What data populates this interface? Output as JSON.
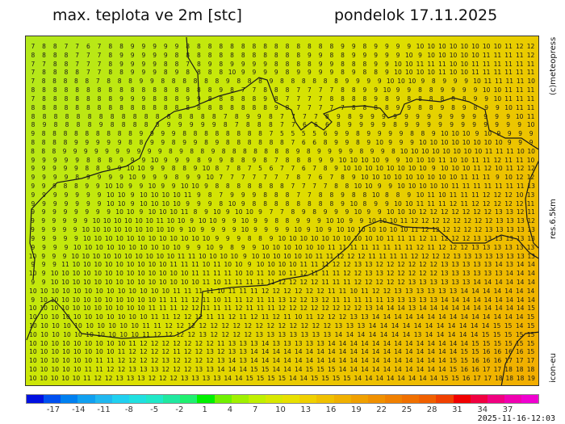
{
  "header": {
    "title": "max. teplota ve 2m [stc]",
    "date": "pondelok 17.11.2025"
  },
  "side_labels": {
    "copyright": "(c)meteopress",
    "resolution": "res.6.5km",
    "model": "icon-eu"
  },
  "timestamp": "2025-11-16-12:03",
  "colorbar": {
    "labels": [
      "-17",
      "-14",
      "-11",
      "-8",
      "-5",
      "-2",
      "1",
      "4",
      "7",
      "10",
      "13",
      "16",
      "19",
      "22",
      "25",
      "28",
      "31",
      "34",
      "37"
    ],
    "colors": [
      "#0010e0",
      "#0050f0",
      "#0080f0",
      "#10a0f0",
      "#20b8f0",
      "#20d0f0",
      "#20e0e0",
      "#20e8c8",
      "#20e8a0",
      "#20f070",
      "#00f000",
      "#70f000",
      "#a0f000",
      "#c0f000",
      "#d8e800",
      "#e8e000",
      "#f0d000",
      "#f0c000",
      "#f0b000",
      "#f0a000",
      "#f09000",
      "#f08000",
      "#f07000",
      "#f06000",
      "#f04000",
      "#f00000",
      "#f00040",
      "#f00080",
      "#f000b0",
      "#f000d0"
    ]
  },
  "grid_rows": [
    "7 8 8 7 7 6 7 8 8 9 9 9 9 9 8 8 8 8 8 8 8 8 8 8 8 8 8 8 9 9 8 9 9 9 9 10 10 10 10 10 10 10 10 11 12 12",
    "8 8 8 8 7 7 7 8 9 9 9 9 9 8 8 8 8 8 8 8 8 8 8 8 8 9 9 8 8 9 9 9 9 9 10 9 10 10 10 10 10 11 11 11 11 12",
    "7 7 8 8 7 7 7 8 9 9 9 9 8 8 7 8 9 8 9 9 9 9 8 8 8 8 9 9 8 8 8 9 9 10 10 11 11 11 10 10 11 11 11 11 11 11",
    "7 8 8 8 8 7 7 8 8 9 9 9 8 9 8 8 8 8 10 9 9 9 9 8 9 9 9 9 8 9 8 8 9 10 10 10 10 11 10 10 11 11 11 11 11 11",
    "7 8 8 8 8 8 7 8 8 8 9 9 8 8 8 8 8 8 9 8 8 8 9 8 8 8 8 8 8 9 9 9 9 10 10 10 9 8 9 9 9 10 11 11 11 11 10",
    "8 8 8 8 8 8 8 8 8 8 8 8 8 8 8 8 8 9 8 7 7 8 8 8 7 7 7 7 8 8 9 9 10 9 9 8 8 9 9 9 9 10 10 11 11 11",
    "7 8 8 8 8 8 8 8 9 9 9 8 8 8 9 9 8 8 8 8 8 9 8 7 7 7 7 8 8 8 8 9 8 9 8 8 8 8 8 8 9 9 10 11 11 11",
    "8 8 8 8 8 8 8 8 8 8 8 8 8 8 8 8 8 8 8 8 8 8 9 8 7 7 7 7 7 8 8 8 8 9 9 8 8 9 8 9 8 9 9 10 11 11",
    "8 8 8 8 8 8 8 8 8 8 8 8 8 8 8 8 8 7 8 9 9 8 7 7 7 7 8 9 8 9 9 9 9 9 9 9 9 9 9 9 9 9 9 10 11",
    "8 9 8 8 8 8 9 8 8 8 8 8 9 9 9 9 9 8 7 8 8 8 7 7 6 6 6 8 9 9 9 9 8 9 9 9 9 9 9 9 9 9 9 9 10",
    "9 8 8 8 8 8 8 8 8 8 9 9 9 9 8 8 8 8 8 8 8 8 7 5 5 5 5 6 9 9 8 9 9 9 9 8 8 9 10 10 10 9 10 9 9 9 9",
    "8 8 8 8 9 9 9 9 9 8 8 9 9 8 9 9 8 9 8 8 8 8 8 8 7 6 6 8 9 9 8 9 10 9 9 9 10 10 10 10 10 10 10 10 9 9 9",
    "8 8 8 9 9 9 9 9 9 9 9 9 9 8 9 8 8 9 8 8 8 8 8 8 8 9 8 9 9 9 9 8 9 9 8 10 10 10 10 10 10 10 10 11 11 11 10 10",
    "9 9 9 9 9 8 8 8 9 9 9 10 9 9 9 8 9 9 8 8 9 8 7 8 8 8 9 9 10 10 10 10 9 9 10 10 10 11 10 10 11 11 12 11 11 10",
    "9 9 9 9 9 8 8 9 9 10 10 9 9 8 8 9 10 8 7 8 7 5 6 7 7 6 7 8 9 10 10 10 10 10 10 10 10 9 10 10 10 11 12 10 11 12 12",
    "9 9 9 9 8 9 9 9 9 10 9 9 9 8 9 9 10 7 7 7 7 7 7 7 8 7 6 7 8 9 10 10 10 10 10 10 10 10 10 11 11 11 9 10 12 12",
    "9 9 9 8 8 9 9 10 10 9 9 10 9 9 10 10 9 8 8 8 8 8 8 8 7 7 7 7 8 8 10 10 9 9 10 10 10 10 10 11 11 11 11 11 11 11 13",
    "9 9 9 9 9 9 9 10 10 9 10 10 10 10 11 9 8 7 9 9 9 8 8 8 7 7 8 8 9 8 8 10 8 8 9 10 11 10 11 11 11 12 12 12 10 13",
    "9 9 9 9 9 9 9 10 10 9 10 10 10 10 9 9 9 8 10 9 8 8 8 8 8 8 8 8 9 10 8 9 9 10 10 11 11 11 12 11 12 12 12 12 12 11",
    "9 9 9 9 9 9 9 9 10 10 9 10 10 10 11 8 9 10 9 10 10 9 7 7 8 9 8 9 9 9 10 9 9 10 10 10 12 12 12 12 12 12 12 13 13 12 11",
    "9 9 9 9 9 9 10 10 10 10 10 10 11 10 10 9 10 10 9 9 10 9 9 8 8 9 9 9 10 10 9 9 10 10 10 11 12 12 12 12 12 12 12 12 13 13 13 12",
    "9 9 9 9 9 10 10 10 10 10 10 10 10 10 9 10 9 9 9 9 10 9 9 9 9 10 9 10 9 10 10 10 10 10 10 10 11 12 12 12 12 12 12 13 13 13 13 13",
    "9 9 9 9 9 10 10 10 10 10 10 10 10 10 10 10 10 9 9 9 8 8 9 10 10 10 10 10 10 10 10 10 10 11 11 11 12 11 12 12 12 13 13 13 13 13 13",
    "9 9 9 9 10 10 10 10 10 10 10 10 10 10 9 9 10 9 8 9 9 10 10 10 10 10 10 11 11 11 11 11 11 11 11 12 11 12 12 12 13 13 13 13 13 13",
    "10 9 9 9 10 10 10 10 10 10 10 10 10 10 11 11 10 10 10 10 9 10 10 10 10 10 10 11 11 12 12 12 11 11 11 11 12 12 12 12 13 13 13 13 13 13 13 13",
    "9 9 9 11 10 10 10 10 10 10 10 10 10 11 11 11 10 11 10 10 9 10 10 10 10 11 11 11 12 12 13 13 12 12 12 12 12 12 13 13 13 13 13 14 13 14 14",
    "10 9 10 10 10 10 10 10 10 10 10 10 10 10 10 11 11 11 11 10 10 11 10 10 11 12 11 11 11 12 12 13 13 12 12 12 12 12 13 13 13 13 13 13 14 14 14",
    "9 9 10 10 10 10 10 10 10 10 10 10 10 10 10 10 11 10 11 11 11 11 11 12 12 12 12 11 11 11 12 12 12 12 12 13 13 13 13 13 13 14 14 14 14 14 14",
    "10 10 10 10 10 10 10 10 10 10 10 10 10 11 11 11 11 10 11 11 11 12 12 12 12 12 12 11 11 10 11 12 12 13 13 13 13 13 13 14 14 14 14 14 14 14",
    "9 10 10 10 10 10 10 10 10 10 10 10 11 11 11 12 11 10 11 11 12 11 11 13 12 12 13 12 11 11 11 11 11 13 13 13 13 13 14 14 14 14 14 14 14 14 14",
    "10 10 10 10 10 10 10 10 10 10 10 11 11 11 12 12 11 11 11 12 11 11 11 12 12 12 12 12 12 12 12 13 14 14 14 13 14 14 14 14 14 14 14 14 14 14 15",
    "10 10 10 10 10 10 10 10 10 10 10 11 11 12 12 12 11 11 12 11 12 11 12 11 10 11 12 12 12 13 13 14 14 14 14 14 14 14 14 14 14 14 14 14 14 15",
    "10 10 10 10 10 10 10 10 10 10 11 11 12 12 12 12 12 12 12 12 12 12 12 12 12 12 12 13 13 13 14 14 14 14 14 14 14 14 14 14 14 15 15 14 15",
    "10 10 10 10 10 10 10 10 10 10 11 12 12 12 12 13 12 12 12 12 13 13 13 13 13 13 13 14 14 14 14 14 14 14 13 14 14 14 14 14 15 15 15 15 15",
    "10 10 10 10 10 10 10 10 10 11 12 12 12 12 12 12 12 11 13 13 13 14 13 13 13 13 13 14 14 14 14 14 14 14 14 14 14 14 14 14 15 15 15 15 15 15",
    "10 10 10 10 10 10 10 10 11 12 12 12 12 11 12 12 13 12 13 13 14 14 14 14 14 14 14 14 14 14 14 14 14 14 14 14 14 14 14 15 15 16 16 16 16 15",
    "10 10 10 10 10 10 11 11 12 12 12 12 13 12 12 12 12 13 14 13 14 14 14 14 14 14 14 14 14 14 14 14 14 14 14 14 14 14 15 15 16 16 16 17 17 17",
    "10 10 10 10 10 11 11 12 12 13 13 13 12 12 12 13 13 14 14 14 15 15 14 14 14 15 15 15 14 14 14 14 14 14 14 14 14 14 15 16 16 17 17 18 18 18",
    "10 10 10 10 10 11 12 12 13 13 13 12 12 12 13 13 13 13 14 14 15 15 15 15 14 14 15 15 15 15 14 14 14 14 14 14 14 14 15 15 16 17 17 18 18 18 19"
  ]
}
